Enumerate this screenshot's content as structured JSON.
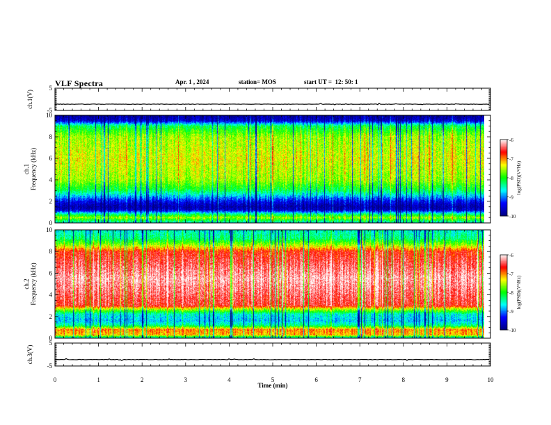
{
  "header": {
    "title": "VLF Spectra",
    "date": "Apr. 1 , 2024",
    "station": "station= MOS",
    "start": "start UT =  12: 50: 1"
  },
  "chart_data": [
    {
      "type": "line",
      "panel": "ch.1 waveform",
      "ylabel": "ch.1(V)",
      "ylim": [
        -5,
        5
      ],
      "yticks": [
        "5",
        "-5"
      ],
      "xlim": [
        0,
        10
      ],
      "series": [
        {
          "values_constant": -2.2
        }
      ]
    },
    {
      "type": "heatmap",
      "panel": "ch.1 spectrogram",
      "ylabel": "ch.1\nFrequency (kHz)",
      "ylim": [
        0,
        10
      ],
      "yticks": [
        "0",
        "2",
        "4",
        "6",
        "8",
        "10"
      ],
      "xlim": [
        0,
        9.85
      ],
      "colorbar": {
        "label": "log(PSD)(V²/Hz)",
        "range": [
          -10,
          -6
        ],
        "ticks": [
          "-6",
          "-7",
          "-8",
          "-9",
          "-10"
        ]
      },
      "profile_freq_khz": [
        0,
        0.5,
        0.8,
        1.2,
        1.5,
        2.0,
        2.5,
        3.0,
        4.0,
        6.0,
        8.0,
        9.0,
        9.5,
        10
      ],
      "profile_logpsd": [
        -8.6,
        -7.6,
        -8.3,
        -9.6,
        -9.8,
        -9.4,
        -8.8,
        -8.2,
        -7.6,
        -7.4,
        -7.6,
        -8.2,
        -9.6,
        -9.9
      ]
    },
    {
      "type": "heatmap",
      "panel": "ch.2 spectrogram",
      "ylabel": "ch.2\nFrequency (kHz)",
      "ylim": [
        0,
        10
      ],
      "yticks": [
        "0",
        "2",
        "4",
        "6",
        "8",
        "10"
      ],
      "xlim": [
        0,
        9.85
      ],
      "colorbar": {
        "label": "log(PSD)(V²/Hz)",
        "range": [
          -10,
          -6
        ],
        "ticks": [
          "-6",
          "-7",
          "-8",
          "-9",
          "-10"
        ]
      },
      "profile_freq_khz": [
        0,
        0.3,
        0.8,
        1.2,
        1.6,
        2.2,
        2.7,
        3.0,
        5.5,
        8.0,
        8.6,
        9.2,
        10
      ],
      "profile_logpsd": [
        -8.8,
        -7.2,
        -7.0,
        -8.4,
        -8.8,
        -8.6,
        -7.5,
        -6.6,
        -6.2,
        -6.7,
        -7.6,
        -8.3,
        -8.6
      ]
    },
    {
      "type": "line",
      "panel": "ch.3 waveform",
      "ylabel": "ch.3(V)",
      "ylim": [
        -5,
        5
      ],
      "yticks": [
        "5",
        "-5"
      ],
      "xlim": [
        0,
        10
      ],
      "series": [
        {
          "values_constant": -2.2
        }
      ]
    }
  ],
  "xaxis": {
    "label": "Time (min)",
    "ticks": [
      "0",
      "1",
      "2",
      "3",
      "4",
      "5",
      "6",
      "7",
      "8",
      "9",
      "10"
    ],
    "range": [
      0,
      10
    ]
  },
  "colors": {
    "colormap": [
      "#000080",
      "#0000ff",
      "#00ffff",
      "#00ff00",
      "#ffff00",
      "#ff0000",
      "#ffffff"
    ]
  }
}
